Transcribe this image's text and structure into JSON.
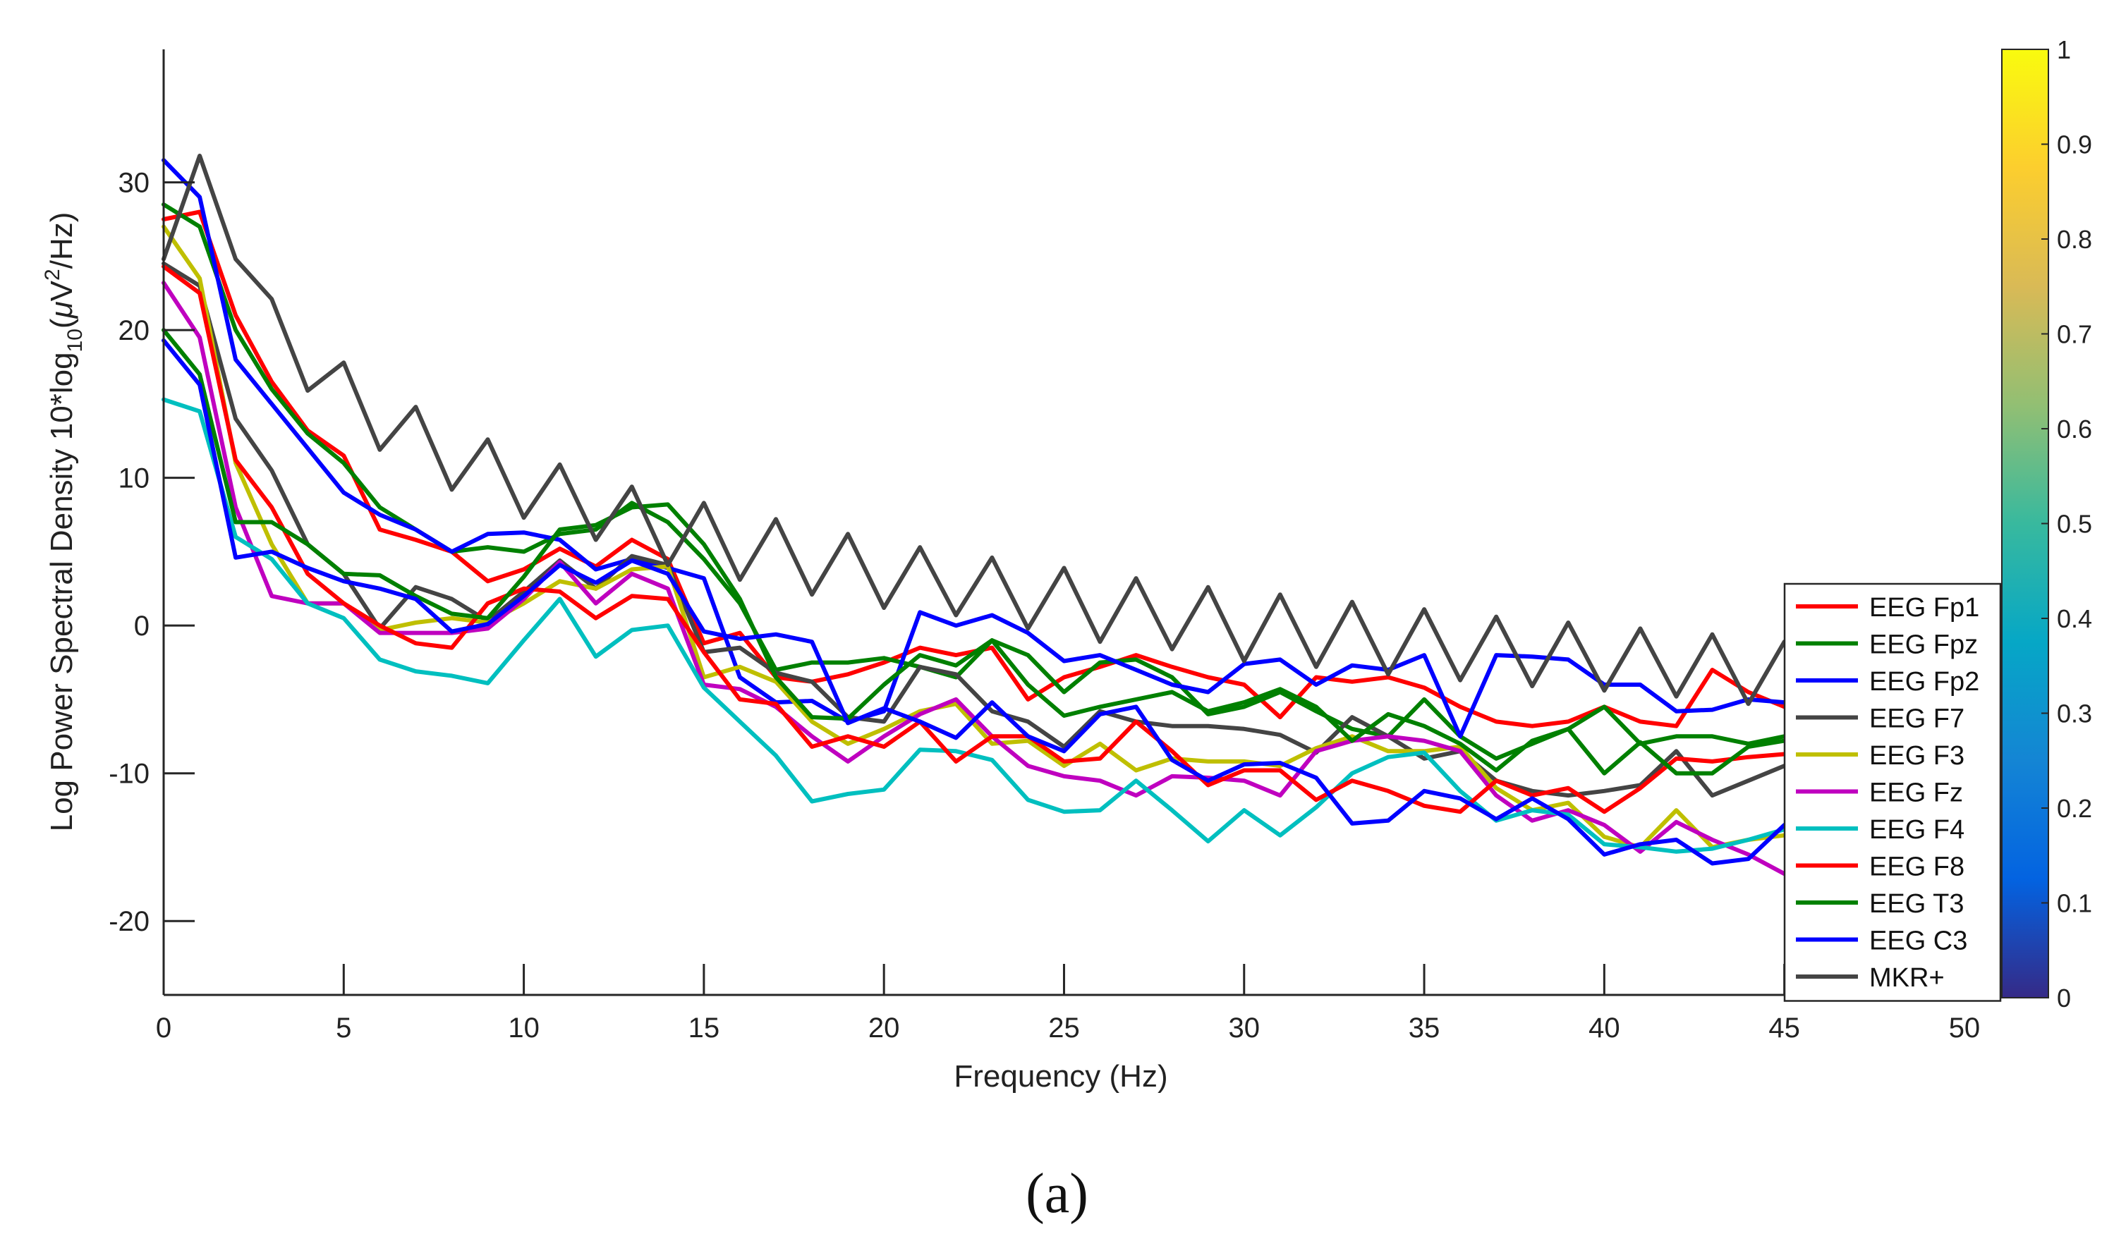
{
  "chart_data": {
    "type": "line",
    "caption": "(a)",
    "xlabel": "Frequency (Hz)",
    "ylabel": "Log Power Spectral Density 10*log10(μV2/Hz)",
    "ylabel_parts": {
      "prefix": "Log Power Spectral Density 10*log",
      "sub10": "10",
      "open": "(",
      "mu": "μ",
      "V": "V",
      "sup2": "2",
      "rest": "/Hz)"
    },
    "xlim": [
      0,
      51
    ],
    "ylim": [
      -25,
      39
    ],
    "xticks": [
      0,
      5,
      10,
      15,
      20,
      25,
      30,
      35,
      40,
      45,
      50
    ],
    "xtick_labels": [
      "0",
      "5",
      "10",
      "15",
      "20",
      "25",
      "30",
      "35",
      "40",
      "45",
      "50"
    ],
    "yticks": [
      -20,
      -10,
      0,
      10,
      20,
      30
    ],
    "ytick_labels": [
      "-20",
      "-10",
      "0",
      "10",
      "20",
      "30"
    ],
    "grid": false,
    "legend_position": "right",
    "x": [
      0,
      1,
      2,
      3,
      4,
      5,
      6,
      7,
      8,
      9,
      10,
      11,
      12,
      13,
      14,
      15,
      16,
      17,
      18,
      19,
      20,
      21,
      22,
      23,
      24,
      25,
      26,
      27,
      28,
      29,
      30,
      31,
      32,
      33,
      34,
      35,
      36,
      37,
      38,
      39,
      40,
      41,
      42,
      43,
      44,
      45
    ],
    "series": [
      {
        "name": "EEG Fp1",
        "color": "#ff0000",
        "values": [
          27.5,
          28,
          21,
          16.5,
          13.2,
          11.5,
          6.5,
          5.8,
          5,
          3,
          3.8,
          5.2,
          4,
          5.8,
          4.5,
          -1.2,
          -0.5,
          -3.5,
          -3.8,
          -3.3,
          -2.5,
          -1.5,
          -2,
          -1.5,
          -5,
          -3.5,
          -2.8,
          -2,
          -2.8,
          -3.5,
          -4,
          -6.2,
          -3.5,
          -3.8,
          -3.5,
          -4.2,
          -5.5,
          -6.5,
          -6.8,
          -6.5,
          -5.5,
          -6.5,
          -6.8,
          -3,
          -4.5,
          -5.5
        ]
      },
      {
        "name": "EEG Fpz",
        "color": "#008000",
        "values": [
          28.5,
          27,
          20,
          16,
          13,
          11,
          8,
          6.5,
          5,
          5.3,
          5,
          6.2,
          6.5,
          8.3,
          7,
          4.5,
          1.5,
          -3,
          -2.5,
          -2.5,
          -2.2,
          -2.8,
          -3.5,
          -1,
          -2,
          -4.5,
          -2.5,
          -2.3,
          -3.5,
          -6,
          -5.5,
          -4.5,
          -5.8,
          -7,
          -7.5,
          -5,
          -7.5,
          -9,
          -8,
          -7,
          -5.5,
          -8,
          -7.5,
          -7.5,
          -8,
          -7.5
        ]
      },
      {
        "name": "EEG Fp2",
        "color": "#0000ff",
        "values": [
          31.5,
          29,
          18,
          15,
          12,
          9,
          7.5,
          6.5,
          5,
          6.2,
          6.3,
          5.8,
          3.8,
          4.5,
          3.9,
          3.2,
          -3.5,
          -5.2,
          -5.1,
          -6.5,
          -5.8,
          0.9,
          0,
          0.7,
          -0.5,
          -2.4,
          -2,
          -3,
          -4,
          -4.5,
          -2.6,
          -2.3,
          -4,
          -2.7,
          -3,
          -2,
          -7.5,
          -2,
          -2.1,
          -2.3,
          -4,
          -4,
          -5.8,
          -5.7,
          -5,
          -5.2
        ]
      },
      {
        "name": "EEG F7",
        "color": "#444444",
        "values": [
          24.5,
          23,
          14,
          10.5,
          5.5,
          3.5,
          -0.2,
          2.6,
          1.8,
          0.3,
          2.3,
          4.4,
          2.5,
          4.7,
          4.1,
          -1.8,
          -1.5,
          -3.2,
          -3.8,
          -6.2,
          -6.5,
          -2.8,
          -3.3,
          -5.8,
          -6.5,
          -8.2,
          -5.8,
          -6.5,
          -6.8,
          -6.8,
          -7,
          -7.4,
          -8.6,
          -6.2,
          -7.5,
          -9,
          -8.5,
          -10.5,
          -11.2,
          -11.5,
          -11.2,
          -10.8,
          -8.5,
          -11.5,
          -10.5,
          -9.5
        ]
      },
      {
        "name": "EEG F3",
        "color": "#bfbf00",
        "values": [
          27,
          23.5,
          11,
          5.5,
          1.5,
          1.5,
          -0.3,
          0.2,
          0.5,
          0.2,
          1.5,
          3,
          2.5,
          3.8,
          4,
          -3.5,
          -2.8,
          -3.8,
          -6.5,
          -8,
          -7,
          -5.8,
          -5.3,
          -8,
          -7.8,
          -9.5,
          -8,
          -9.8,
          -9,
          -9.2,
          -9.2,
          -9.5,
          -8.3,
          -7.5,
          -8.5,
          -8.5,
          -8.2,
          -11,
          -12.5,
          -12,
          -14.3,
          -15,
          -12.5,
          -15,
          -14.5,
          -14.2
        ]
      },
      {
        "name": "EEG Fz",
        "color": "#bf00bf",
        "values": [
          23.2,
          19.5,
          8,
          2,
          1.5,
          1.5,
          -0.5,
          -0.5,
          -0.5,
          -0.2,
          1.8,
          4.3,
          1.5,
          3.5,
          2.5,
          -4,
          -4.3,
          -5.5,
          -7.5,
          -9.2,
          -7.5,
          -6,
          -5,
          -7.5,
          -9.5,
          -10.2,
          -10.5,
          -11.5,
          -10.2,
          -10.3,
          -10.5,
          -11.5,
          -8.5,
          -7.8,
          -7.5,
          -7.8,
          -8.5,
          -11.5,
          -13.2,
          -12.5,
          -13.5,
          -15.3,
          -13.3,
          -14.5,
          -15.5,
          -16.8
        ]
      },
      {
        "name": "EEG F4",
        "color": "#00bfbf",
        "values": [
          15.3,
          14.5,
          6,
          4.5,
          1.5,
          0.5,
          -2.3,
          -3.1,
          -3.4,
          -3.9,
          -1,
          1.8,
          -2.1,
          -0.3,
          0,
          -4.2,
          -6.5,
          -8.8,
          -11.9,
          -11.4,
          -11.1,
          -8.4,
          -8.5,
          -9.1,
          -11.8,
          -12.6,
          -12.5,
          -10.5,
          -12.5,
          -14.6,
          -12.5,
          -14.2,
          -12.3,
          -10,
          -8.9,
          -8.6,
          -11.2,
          -13.2,
          -12.5,
          -12.8,
          -14.8,
          -15,
          -15.3,
          -15.1,
          -14.5,
          -13.8
        ]
      },
      {
        "name": "EEG F8",
        "color": "#ff0000",
        "values": [
          24.3,
          22.5,
          11.2,
          8,
          3.5,
          1.5,
          0,
          -1.2,
          -1.5,
          1.5,
          2.5,
          2.3,
          0.5,
          2,
          1.8,
          -1.8,
          -5,
          -5.3,
          -8.2,
          -7.5,
          -8.2,
          -6.5,
          -9.2,
          -7.5,
          -7.5,
          -9.2,
          -9,
          -6.5,
          -8.5,
          -10.8,
          -9.8,
          -9.8,
          -11.8,
          -10.5,
          -11.2,
          -12.2,
          -12.6,
          -10.5,
          -11.5,
          -11,
          -12.6,
          -11,
          -9,
          -9.2,
          -8.9,
          -8.7
        ]
      },
      {
        "name": "EEG T3",
        "color": "#008000",
        "values": [
          20,
          17,
          7,
          7,
          5.5,
          3.5,
          3.4,
          2,
          0.8,
          0.5,
          3.3,
          6.5,
          6.8,
          8,
          8.2,
          5.5,
          1.8,
          -3.5,
          -6.2,
          -6.3,
          -4,
          -2,
          -2.7,
          -1,
          -4,
          -6.1,
          -5.5,
          -5,
          -4.5,
          -5.8,
          -5.2,
          -4.3,
          -5.5,
          -7.8,
          -6,
          -6.8,
          -8,
          -9.8,
          -7.8,
          -7,
          -10,
          -7.9,
          -10,
          -10,
          -8.2,
          -7.8
        ]
      },
      {
        "name": "EEG C3",
        "color": "#0000ff",
        "values": [
          19.3,
          16.3,
          4.6,
          5,
          3.9,
          3,
          2.5,
          1.8,
          -0.4,
          0.1,
          2,
          4.1,
          2.9,
          4.4,
          3.5,
          -0.4,
          -0.9,
          -0.6,
          -1.1,
          -6.6,
          -5.6,
          -6.5,
          -7.6,
          -5.2,
          -7.5,
          -8.5,
          -6,
          -5.5,
          -9.1,
          -10.5,
          -9.4,
          -9.3,
          -10.3,
          -13.4,
          -13.2,
          -11.2,
          -11.7,
          -13.1,
          -11.7,
          -13.1,
          -15.5,
          -14.8,
          -14.5,
          -16.1,
          -15.8,
          -13.5
        ]
      },
      {
        "name": "MKR+",
        "color": "#444444",
        "values": [
          24.8,
          31.8,
          24.8,
          22.1,
          15.9,
          17.8,
          11.9,
          14.8,
          9.2,
          12.6,
          7.3,
          10.9,
          5.8,
          9.4,
          4.1,
          8.3,
          3.1,
          7.2,
          2.1,
          6.2,
          1.2,
          5.3,
          0.7,
          4.6,
          -0.2,
          3.9,
          -1.1,
          3.2,
          -1.6,
          2.6,
          -2.4,
          2.1,
          -2.8,
          1.6,
          -3.3,
          1.1,
          -3.7,
          0.6,
          -4.1,
          0.2,
          -4.4,
          -0.2,
          -4.8,
          -0.6,
          -5.3,
          -1.1
        ]
      }
    ],
    "colorbar": {
      "ticks": [
        0,
        0.1,
        0.2,
        0.3,
        0.4,
        0.5,
        0.6,
        0.7,
        0.8,
        0.9,
        1
      ],
      "tick_labels": [
        "0",
        "0.1",
        "0.2",
        "0.3",
        "0.4",
        "0.5",
        "0.6",
        "0.7",
        "0.8",
        "0.9",
        "1"
      ],
      "colormap": "parula",
      "stops": [
        "#352a87",
        "#0363e1",
        "#1485d4",
        "#06a7c6",
        "#38b99e",
        "#92bf73",
        "#d9ba56",
        "#fcce2e",
        "#f9fb0e"
      ]
    }
  }
}
